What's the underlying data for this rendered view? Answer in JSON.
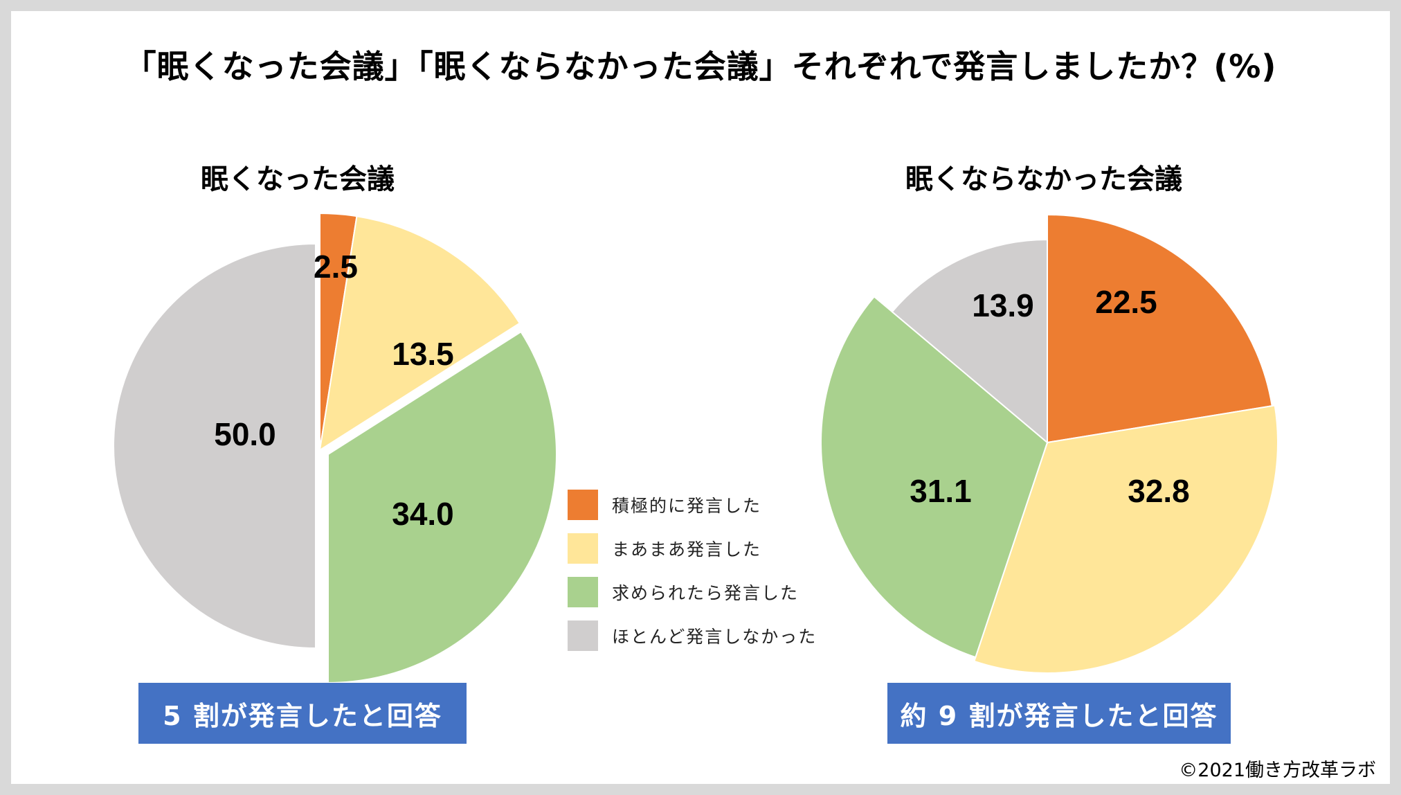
{
  "chart_data": [
    {
      "type": "pie",
      "title": "眠くなった会議",
      "categories": [
        "積極的に発言した",
        "まあまあ発言した",
        "求められたら発言した",
        "ほとんど発言しなかった"
      ],
      "values": [
        2.5,
        13.5,
        34.0,
        50.0
      ],
      "data_labels": [
        "2.5",
        "13.5",
        "34.0",
        "50.0"
      ],
      "colors": [
        "#ed7d31",
        "#ffe699",
        "#a9d18e",
        "#d0cece"
      ],
      "legend": "center-between"
    },
    {
      "type": "pie",
      "title": "眠くならなかった会議",
      "categories": [
        "積極的に発言した",
        "まあまあ発言した",
        "求められたら発言した",
        "ほとんど発言しなかった"
      ],
      "values": [
        22.5,
        32.8,
        31.1,
        13.9
      ],
      "data_labels": [
        "22.5",
        "32.8",
        "31.1",
        "13.9"
      ],
      "colors": [
        "#ed7d31",
        "#ffe699",
        "#a9d18e",
        "#d0cece"
      ]
    }
  ],
  "title": "「眠くなった会議」「眠くならなかった会議」それぞれで発言しましたか？(%)",
  "legend": [
    {
      "label": "積極的に発言した",
      "color": "#ed7d31"
    },
    {
      "label": "まあまあ発言した",
      "color": "#ffe699"
    },
    {
      "label": "求められたら発言した",
      "color": "#a9d18e"
    },
    {
      "label": "ほとんど発言しなかった",
      "color": "#d0cece"
    }
  ],
  "callouts": {
    "left": "5 割が発言したと回答",
    "right": "約 9 割が発言したと回答",
    "color": "#4472c4"
  },
  "copyright": "©2021働き方改革ラボ"
}
